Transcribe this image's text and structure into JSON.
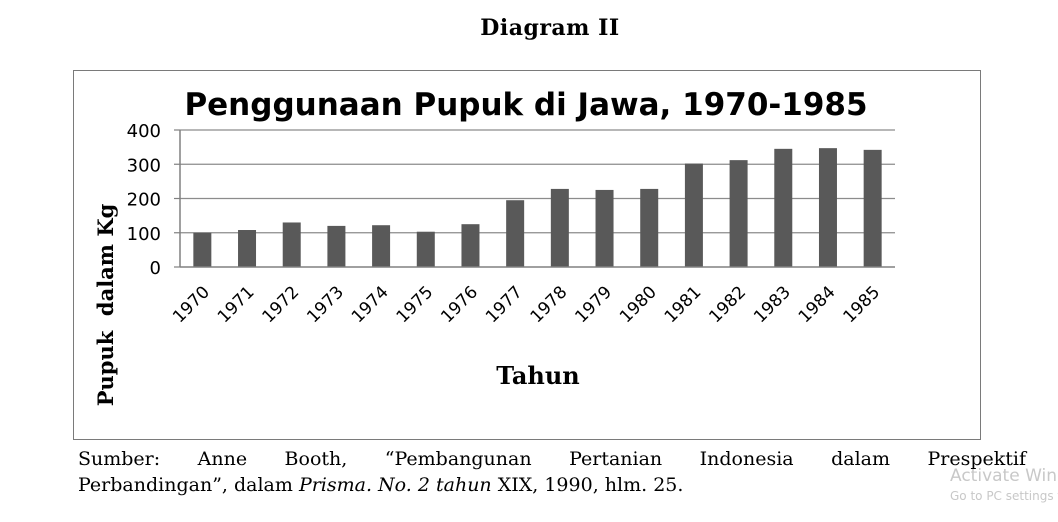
{
  "page": {
    "heading": "Diagram II"
  },
  "chart_data": {
    "type": "bar",
    "title": "Penggunaan Pupuk di Jawa, 1970-1985",
    "xlabel": "Tahun",
    "ylabel": "Pupuk  dalam Kg",
    "ylim": [
      0,
      400
    ],
    "yticks": [
      0,
      100,
      200,
      300,
      400
    ],
    "grid": true,
    "legend": "none",
    "bar_color": "#595959",
    "categories": [
      "1970",
      "1971",
      "1972",
      "1973",
      "1974",
      "1975",
      "1976",
      "1977",
      "1978",
      "1979",
      "1980",
      "1981",
      "1982",
      "1983",
      "1984",
      "1985"
    ],
    "values": [
      100,
      108,
      130,
      120,
      122,
      103,
      125,
      195,
      228,
      225,
      228,
      302,
      312,
      345,
      347,
      342
    ]
  },
  "caption": {
    "line1": "Sumber:  Anne  Booth,  “Pembangunan  Pertanian  Indonesia  dalam  Prespektif",
    "line2_before": "Perbandingan”, dalam ",
    "line2_italic": "Prisma.  No. 2 tahun",
    "line2_after": " XIX, 1990, hlm. 25."
  },
  "watermark": {
    "line1": "Activate Windows",
    "line2": "Go to PC settings to activate Windows."
  }
}
